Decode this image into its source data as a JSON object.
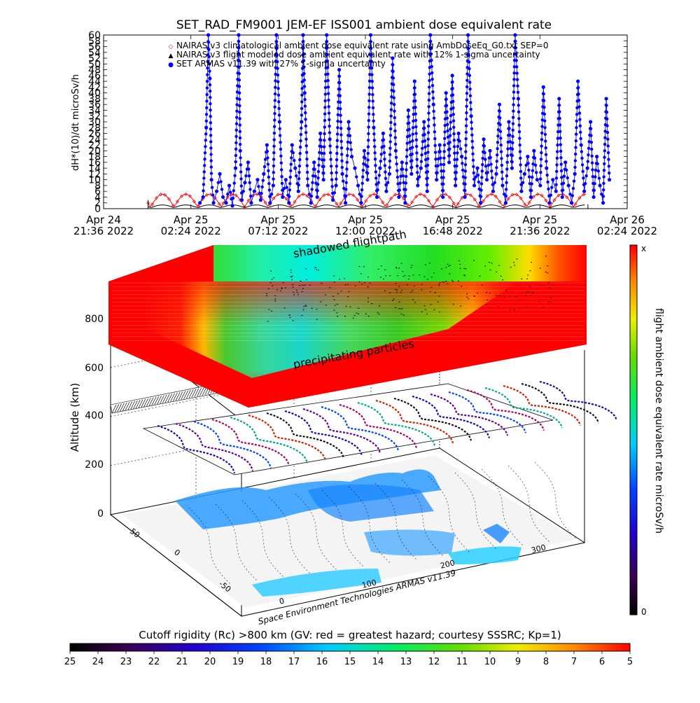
{
  "chart_data": [
    {
      "type": "line",
      "title": "SET_RAD_FM9001  JEM-EF ISS001 ambient dose equivalent rate",
      "ylabel": "dH*(10)/dt microSv/h",
      "ylim": [
        0,
        60
      ],
      "yticks": [
        0,
        2,
        4,
        6,
        8,
        10,
        12,
        14,
        16,
        18,
        20,
        22,
        24,
        26,
        28,
        30,
        32,
        34,
        36,
        38,
        40,
        42,
        44,
        46,
        48,
        50,
        52,
        54,
        56,
        58,
        60
      ],
      "xticks": [
        {
          "l1": "Apr 24",
          "l2": "21:36 2022"
        },
        {
          "l1": "Apr 25",
          "l2": "02:24 2022"
        },
        {
          "l1": "Apr 25",
          "l2": "07:12 2022"
        },
        {
          "l1": "Apr 25",
          "l2": "12:00 2022"
        },
        {
          "l1": "Apr 25",
          "l2": "16:48 2022"
        },
        {
          "l1": "Apr 25",
          "l2": "21:36 2022"
        },
        {
          "l1": "Apr 26",
          "l2": "02:24 2022"
        }
      ],
      "legend": [
        {
          "marker": "◇",
          "color": "#ff0000",
          "text": "NAIRAS v3 climatological ambient dose equivalent rate using AmbDoseEq_G0.txt SEP=0"
        },
        {
          "marker": "▲",
          "color": "#000000",
          "text": "NAIRAS v3 flight modeled dose ambient equivalent rate with 12% 1-sigma uncertainty"
        },
        {
          "marker": "●",
          "color": "#0000ff",
          "text": "SET ARMAS v11.39 with 27% 1-sigma uncertainty"
        }
      ],
      "series": [
        {
          "name": "SET ARMAS v11.39 with 27% 1-sigma uncertainty",
          "color": "#0000ff",
          "x_frac": [
            0.184,
            0.19,
            0.196,
            0.2,
            0.203,
            0.206,
            0.21,
            0.216,
            0.222,
            0.228,
            0.234,
            0.24,
            0.246,
            0.252,
            0.258,
            0.261,
            0.264,
            0.27,
            0.276,
            0.282,
            0.288,
            0.294,
            0.3,
            0.306,
            0.312,
            0.318,
            0.324,
            0.33,
            0.336,
            0.342,
            0.348,
            0.354,
            0.36,
            0.366,
            0.372,
            0.378,
            0.381,
            0.384,
            0.39,
            0.396,
            0.402,
            0.408,
            0.414,
            0.42,
            0.426,
            0.432,
            0.438,
            0.444,
            0.45,
            0.456,
            0.462,
            0.468,
            0.474,
            0.48,
            0.486,
            0.492,
            0.498,
            0.504,
            0.51,
            0.516,
            0.522,
            0.528,
            0.534,
            0.54,
            0.546,
            0.552,
            0.558,
            0.564,
            0.57,
            0.576,
            0.582,
            0.588,
            0.594,
            0.6,
            0.606,
            0.612,
            0.618,
            0.624,
            0.63,
            0.636,
            0.642,
            0.648,
            0.654,
            0.66,
            0.666,
            0.672,
            0.678,
            0.684,
            0.69,
            0.696,
            0.702,
            0.708,
            0.714,
            0.72,
            0.726,
            0.732,
            0.738,
            0.744,
            0.75,
            0.756,
            0.762,
            0.768,
            0.774,
            0.78,
            0.786,
            0.792,
            0.798,
            0.804,
            0.81,
            0.816,
            0.822,
            0.828,
            0.834,
            0.84,
            0.846,
            0.852,
            0.858,
            0.864,
            0.87,
            0.876,
            0.882,
            0.888,
            0.894,
            0.9,
            0.906,
            0.912,
            0.918,
            0.924,
            0.93,
            0.936,
            0.942,
            0.948,
            0.954,
            0.96,
            0.966
          ],
          "values": [
            2,
            4,
            28,
            60,
            45,
            10,
            2,
            6,
            12,
            4,
            2,
            8,
            1,
            14,
            60,
            20,
            3,
            9,
            16,
            2,
            6,
            10,
            3,
            12,
            22,
            2,
            8,
            60,
            30,
            4,
            10,
            2,
            22,
            14,
            6,
            30,
            60,
            40,
            8,
            2,
            16,
            4,
            26,
            10,
            60,
            24,
            3,
            8,
            48,
            12,
            2,
            30,
            18,
            14,
            8,
            2,
            20,
            10,
            60,
            28,
            4,
            14,
            26,
            6,
            12,
            52,
            20,
            4,
            16,
            2,
            34,
            12,
            44,
            8,
            14,
            30,
            6,
            60,
            36,
            10,
            22,
            4,
            40,
            16,
            46,
            8,
            26,
            18,
            4,
            60,
            32,
            8,
            14,
            2,
            24,
            10,
            20,
            6,
            12,
            36,
            8,
            2,
            30,
            14,
            60,
            38,
            6,
            12,
            18,
            4,
            20,
            10,
            8,
            42,
            14,
            2,
            10,
            6,
            38,
            4,
            16,
            8,
            2,
            12,
            44,
            22,
            6,
            14,
            30,
            4,
            18,
            8,
            2,
            38,
            10
          ]
        },
        {
          "name": "NAIRAS v3 climatological ambient dose equivalent rate using AmbDoseEq_G0.txt SEP=0",
          "color": "#ff0000",
          "baseline": 0.5,
          "amplitude": 4.5
        },
        {
          "name": "NAIRAS v3 flight modeled dose ambient equivalent rate with 12% 1-sigma uncertainty",
          "color": "#000000",
          "baseline": 0.3,
          "amplitude": 1.0
        }
      ]
    },
    {
      "type": "heatmap",
      "title": "",
      "zlabel": "Altitude (km)",
      "zticks": [
        "0",
        "200",
        "400",
        "600",
        "800"
      ],
      "lon_ticks": [
        "0",
        "100",
        "200",
        "300"
      ],
      "lat_ticks": [
        "-50",
        "0",
        "50"
      ],
      "annotations": {
        "top": "shadowed flightpath",
        "slab": "precipitating particles",
        "credit": "Space Environment Technologies ARMAS v11.39"
      },
      "colorbar": {
        "label": "flight ambient dose equivalent rate microSv/h",
        "top": "x",
        "bottom": "0"
      }
    },
    {
      "type": "heatmap",
      "colorbar": {
        "label": "Cutoff rigidity (Rc) >800 km (GV: red = greatest hazard; courtesy SSSRC; Kp=1)",
        "ticks": [
          "25",
          "24",
          "23",
          "22",
          "21",
          "20",
          "19",
          "18",
          "17",
          "16",
          "15",
          "14",
          "13",
          "12",
          "11",
          "10",
          "9",
          "8",
          "7",
          "6",
          "5"
        ]
      }
    }
  ],
  "colors": {
    "armas": "#0000ff",
    "nairas_clim": "#ff0000",
    "nairas_flight": "#000000"
  }
}
